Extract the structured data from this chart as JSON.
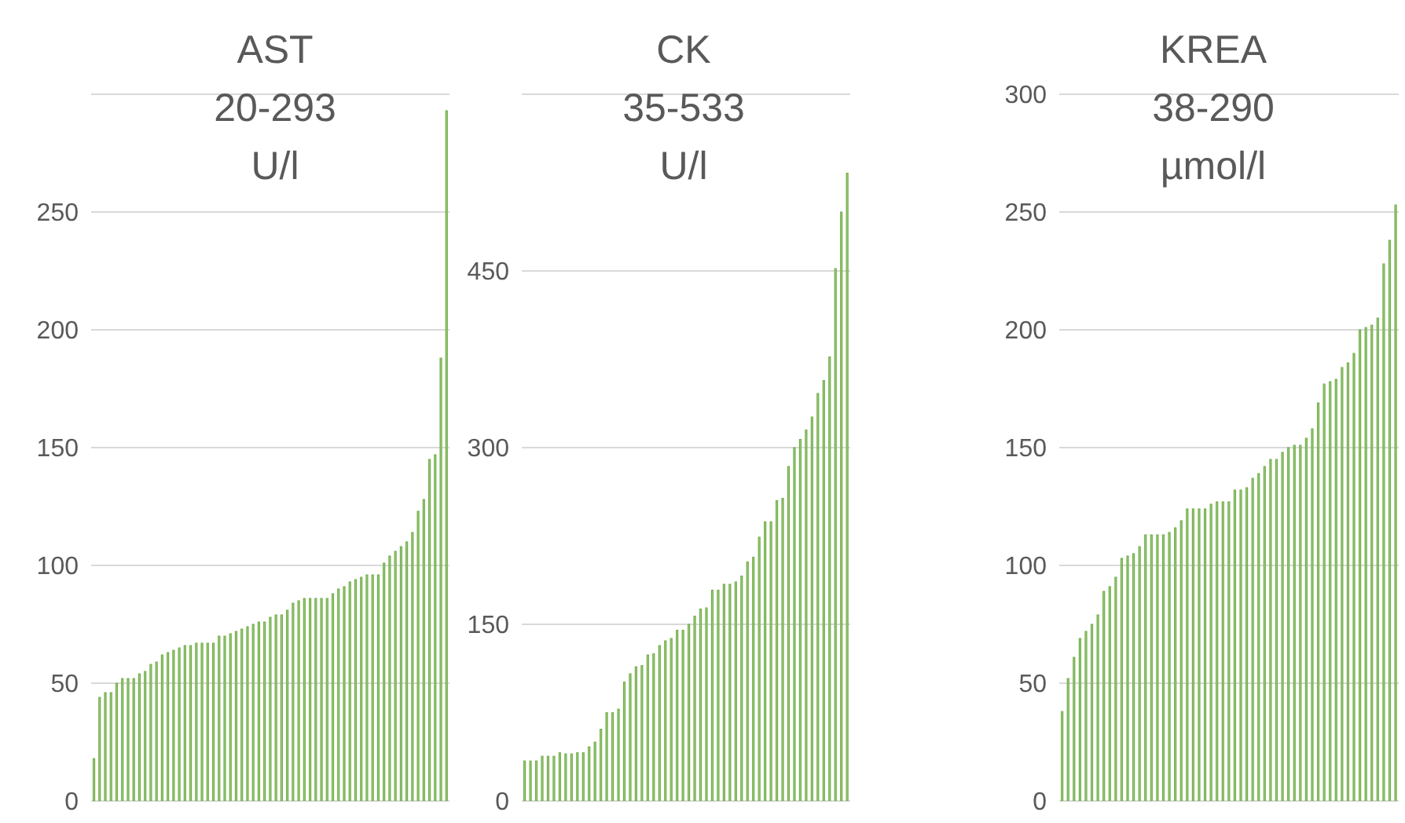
{
  "chart_data": [
    {
      "type": "bar",
      "title": "AST\n20-293\nU/l",
      "categories": [
        null,
        null,
        null,
        null,
        null,
        null,
        null,
        null,
        null,
        null,
        null,
        null,
        null,
        null,
        null,
        null,
        null,
        null,
        null,
        null,
        null,
        null,
        null,
        null,
        null,
        null,
        null,
        null,
        null,
        null,
        null,
        null,
        null,
        null,
        null,
        null,
        null,
        null,
        null,
        null,
        null,
        null,
        null,
        null,
        null,
        null,
        null,
        null,
        null,
        null,
        null,
        null,
        null,
        null,
        null,
        null,
        null,
        null,
        null,
        null,
        null,
        null,
        null
      ],
      "values": [
        18,
        44,
        46,
        46,
        50,
        52,
        52,
        52,
        54,
        55,
        58,
        59,
        62,
        63,
        64,
        65,
        66,
        66,
        67,
        67,
        67,
        67,
        70,
        70,
        71,
        72,
        73,
        74,
        75,
        76,
        76,
        78,
        79,
        79,
        81,
        84,
        85,
        86,
        86,
        86,
        86,
        86,
        88,
        90,
        91,
        93,
        94,
        95,
        96,
        96,
        96,
        101,
        104,
        106,
        108,
        110,
        114,
        123,
        128,
        145,
        147,
        188,
        293
      ],
      "color": "#a9d18e",
      "ylim": [
        0,
        300
      ],
      "yticks": [
        0,
        50,
        100,
        150,
        200,
        250
      ],
      "grid": "y",
      "tick_labels": "y"
    },
    {
      "type": "bar",
      "title": "CK\n35-533\nU/l",
      "categories": [
        null,
        null,
        null,
        null,
        null,
        null,
        null,
        null,
        null,
        null,
        null,
        null,
        null,
        null,
        null,
        null,
        null,
        null,
        null,
        null,
        null,
        null,
        null,
        null,
        null,
        null,
        null,
        null,
        null,
        null,
        null,
        null,
        null,
        null,
        null,
        null,
        null,
        null,
        null,
        null,
        null,
        null,
        null,
        null,
        null,
        null,
        null,
        null,
        null,
        null,
        null,
        null,
        null,
        null,
        null,
        null
      ],
      "values": [
        34,
        34,
        34,
        38,
        38,
        38,
        41,
        40,
        40,
        41,
        41,
        46,
        50,
        61,
        75,
        75,
        78,
        101,
        108,
        114,
        115,
        124,
        125,
        132,
        136,
        138,
        145,
        145,
        150,
        157,
        163,
        164,
        179,
        179,
        184,
        184,
        186,
        191,
        203,
        207,
        224,
        237,
        237,
        255,
        257,
        284,
        300,
        307,
        315,
        326,
        346,
        357,
        377,
        452,
        500,
        533
      ],
      "color": "#a9d18e",
      "ylim": [
        0,
        600
      ],
      "yticks": [
        0,
        150,
        300,
        450
      ],
      "grid": "y",
      "tick_labels": "y"
    },
    {
      "type": "bar",
      "title": "KREA\n38-290\nµmol/l",
      "categories": [
        null,
        null,
        null,
        null,
        null,
        null,
        null,
        null,
        null,
        null,
        null,
        null,
        null,
        null,
        null,
        null,
        null,
        null,
        null,
        null,
        null,
        null,
        null,
        null,
        null,
        null,
        null,
        null,
        null,
        null,
        null,
        null,
        null,
        null,
        null,
        null,
        null,
        null,
        null,
        null,
        null,
        null,
        null,
        null,
        null,
        null,
        null,
        null,
        null,
        null,
        null,
        null,
        null,
        null,
        null,
        null,
        null
      ],
      "values": [
        38,
        52,
        61,
        69,
        72,
        75,
        79,
        89,
        91,
        95,
        103,
        104,
        105,
        108,
        113,
        113,
        113,
        113,
        114,
        116,
        119,
        124,
        124,
        124,
        124,
        126,
        127,
        127,
        127,
        132,
        132,
        133,
        137,
        139,
        142,
        145,
        145,
        148,
        150,
        151,
        151,
        154,
        158,
        169,
        177,
        178,
        179,
        184,
        186,
        190,
        200,
        201,
        202,
        205,
        228,
        238,
        253
      ],
      "color": "#a9d18e",
      "ylim": [
        0,
        300
      ],
      "yticks": [
        0,
        50,
        100,
        150,
        200,
        250,
        300
      ],
      "grid": "y",
      "tick_labels": "y"
    }
  ]
}
